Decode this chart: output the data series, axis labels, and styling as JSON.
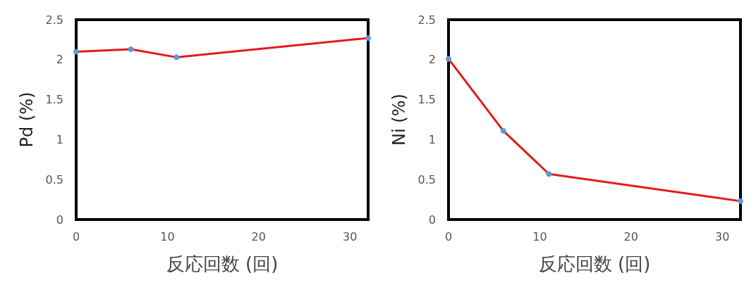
{
  "chart_data": [
    {
      "type": "line",
      "ylabel": "Pd (%)",
      "xlabel": "反応回数 (回)",
      "x": [
        0,
        6,
        11,
        32
      ],
      "series": [
        {
          "color": "#e41a1c",
          "values": [
            2.1,
            2.13,
            2.03,
            2.27
          ]
        }
      ],
      "xlim": [
        0,
        32
      ],
      "xticks": [
        0,
        10,
        20,
        30
      ],
      "ylim": [
        0,
        2.5
      ],
      "yticks": [
        0,
        0.5,
        1,
        1.5,
        2,
        2.5
      ],
      "grid": false,
      "marker": "circle",
      "line_style": "solid"
    },
    {
      "type": "line",
      "ylabel": "Ni (%)",
      "xlabel": "反応回数 (回)",
      "x": [
        0,
        6,
        11,
        32
      ],
      "series": [
        {
          "color": "#e41a1c",
          "values": [
            2.01,
            1.11,
            0.57,
            0.23
          ]
        }
      ],
      "xlim": [
        0,
        32
      ],
      "xticks": [
        0,
        10,
        20,
        30
      ],
      "ylim": [
        0,
        2.5
      ],
      "yticks": [
        0,
        0.5,
        1,
        1.5,
        2,
        2.5
      ],
      "grid": false,
      "marker": "circle",
      "line_style": "solid"
    }
  ]
}
